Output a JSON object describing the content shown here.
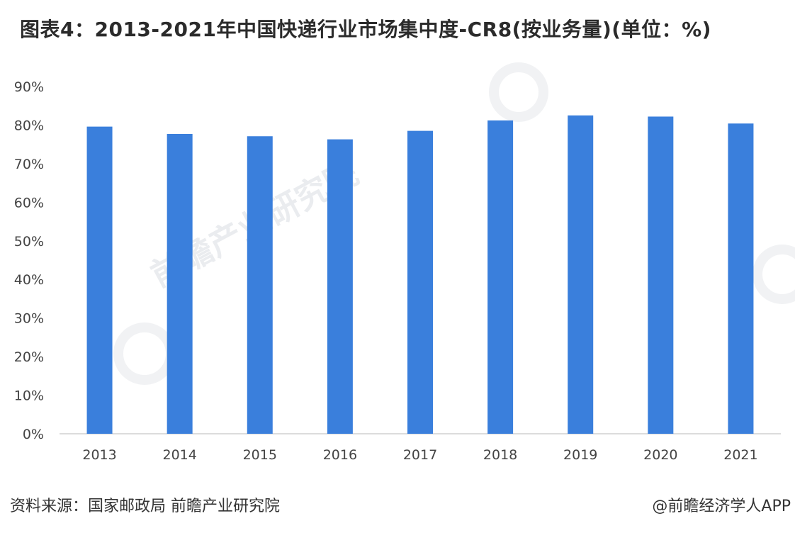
{
  "header": {
    "title": "图表4：2013-2021年中国快递行业市场集中度-CR8(按业务量)(单位：%)"
  },
  "footer": {
    "source": "资料来源：国家邮政局 前瞻产业研究院",
    "credit": "@前瞻经济学人APP"
  },
  "watermark": {
    "text": "前瞻产业研究院"
  },
  "colors": {
    "bar": "#3a7fdc",
    "axis": "#d0d0d0",
    "tick_text": "#444444"
  },
  "chart_data": {
    "type": "bar",
    "categories": [
      "2013",
      "2014",
      "2015",
      "2016",
      "2017",
      "2018",
      "2019",
      "2020",
      "2021"
    ],
    "values": [
      79.6,
      77.7,
      77.1,
      76.3,
      78.5,
      81.2,
      82.5,
      82.2,
      80.4
    ],
    "yticks": [
      "0%",
      "10%",
      "20%",
      "30%",
      "40%",
      "50%",
      "60%",
      "70%",
      "80%",
      "90%"
    ],
    "ylim": [
      0,
      90
    ],
    "grid": false,
    "legend": false
  }
}
